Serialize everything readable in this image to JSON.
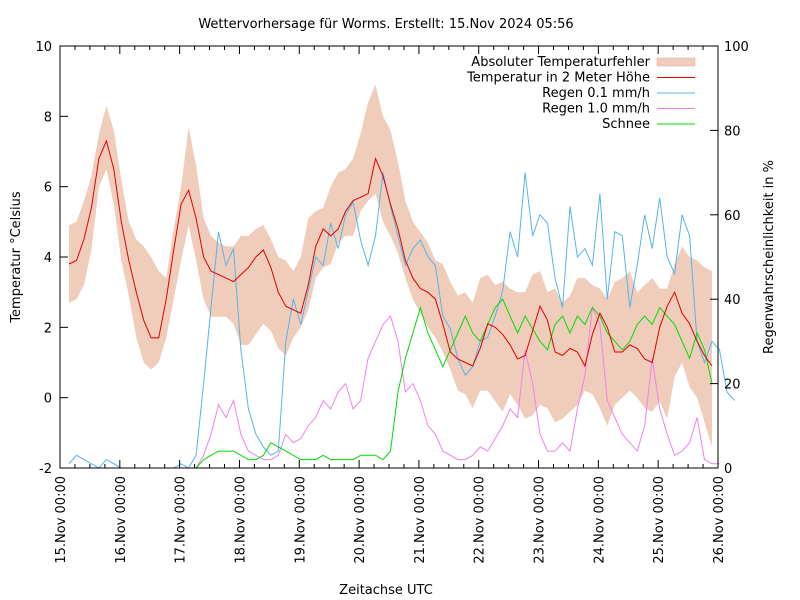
{
  "chart_data": {
    "type": "line",
    "title": "Wettervorhersage für Worms. Erstellt: 15.Nov 2024 05:56",
    "xlabel": "Zeitachse UTC",
    "ylabel": "Temperatur °Celsius",
    "y2label": "Regenwahrscheinlichkeit in %",
    "xlim_days": [
      0,
      11
    ],
    "ylim": [
      -2,
      10
    ],
    "y2lim": [
      0,
      100
    ],
    "x_ticks": [
      "15.Nov 00:00",
      "16.Nov 00:00",
      "17.Nov 00:00",
      "18.Nov 00:00",
      "19.Nov 00:00",
      "20.Nov 00:00",
      "21.Nov 00:00",
      "22.Nov 00:00",
      "23.Nov 00:00",
      "24.Nov 00:00",
      "25.Nov 00:00",
      "26.Nov 00:00"
    ],
    "y_ticks": [
      "-2",
      "0",
      "2",
      "4",
      "6",
      "8",
      "10"
    ],
    "y2_ticks": [
      "0",
      "20",
      "40",
      "60",
      "80",
      "100"
    ],
    "legend_position": "top-right",
    "x_step_hours": 3,
    "x_start_day": 0.15,
    "series": [
      {
        "name": "Absoluter Temperaturfehler",
        "kind": "band",
        "axis": "y",
        "color": "#f0ccbb",
        "upper": [
          4.9,
          5.0,
          5.6,
          6.3,
          7.5,
          8.3,
          7.6,
          6.2,
          5.0,
          4.5,
          4.3,
          4.0,
          3.6,
          3.4,
          4.8,
          6.0,
          7.7,
          6.6,
          5.1,
          4.6,
          4.4,
          4.3,
          4.3,
          4.6,
          4.6,
          4.8,
          4.9,
          4.5,
          4.0,
          3.9,
          3.6,
          4.0,
          5.1,
          5.3,
          5.4,
          6.0,
          6.4,
          6.5,
          6.8,
          7.5,
          8.4,
          8.9,
          8.0,
          7.6,
          6.7,
          5.6,
          5.0,
          4.7,
          4.4,
          3.9,
          3.8,
          3.3,
          2.9,
          3.0,
          2.7,
          3.4,
          3.5,
          3.2,
          3.3,
          3.1,
          3.0,
          3.0,
          3.5,
          3.6,
          3.0,
          3.1,
          2.7,
          2.9,
          3.4,
          3.4,
          3.2,
          3.1,
          2.8,
          3.3,
          3.4,
          3.6,
          3.0,
          3.2,
          3.4,
          3.1,
          3.1,
          3.8,
          4.3,
          4.0,
          3.9,
          3.7,
          3.6
        ],
        "lower": [
          2.7,
          2.8,
          3.2,
          4.2,
          6.0,
          6.5,
          5.5,
          3.9,
          2.9,
          1.7,
          1.0,
          0.8,
          1.0,
          1.7,
          2.8,
          3.9,
          4.9,
          3.9,
          2.8,
          2.3,
          2.3,
          2.3,
          2.1,
          1.5,
          1.5,
          1.8,
          2.1,
          1.9,
          1.4,
          1.2,
          1.7,
          2.0,
          2.5,
          3.4,
          3.7,
          3.8,
          4.4,
          4.6,
          4.6,
          5.3,
          5.6,
          5.8,
          5.0,
          4.6,
          4.1,
          3.4,
          2.8,
          2.4,
          2.0,
          1.7,
          1.3,
          0.8,
          0.2,
          0.1,
          -0.3,
          0.2,
          0.2,
          -0.1,
          -0.4,
          0.1,
          -0.2,
          -0.6,
          -0.5,
          -0.2,
          -0.3,
          -0.7,
          -0.6,
          -0.4,
          -0.2,
          0.2,
          0.1,
          -0.3,
          -0.8,
          -0.2,
          0.0,
          0.2,
          0.0,
          -0.3,
          -0.4,
          -0.1,
          -0.6,
          0.6,
          1.0,
          0.3,
          0.0,
          -0.7,
          -1.4
        ]
      },
      {
        "name": "Temperatur in 2 Meter Höhe",
        "kind": "line",
        "axis": "y",
        "color": "#e00000",
        "values": [
          3.8,
          3.9,
          4.5,
          5.4,
          6.8,
          7.3,
          6.5,
          5.0,
          3.9,
          3.0,
          2.2,
          1.7,
          1.7,
          2.8,
          4.2,
          5.5,
          5.9,
          5.1,
          4.0,
          3.6,
          3.5,
          3.4,
          3.3,
          3.5,
          3.7,
          4.0,
          4.2,
          3.7,
          3.0,
          2.6,
          2.5,
          2.4,
          3.2,
          4.3,
          4.8,
          4.6,
          4.8,
          5.3,
          5.6,
          5.7,
          5.8,
          6.8,
          6.3,
          5.5,
          4.8,
          3.9,
          3.4,
          3.1,
          3.0,
          2.8,
          2.1,
          1.3,
          1.1,
          1.0,
          0.9,
          1.4,
          2.1,
          2.0,
          1.8,
          1.5,
          1.1,
          1.2,
          1.9,
          2.6,
          2.2,
          1.3,
          1.2,
          1.4,
          1.3,
          0.9,
          1.8,
          2.4,
          2.0,
          1.3,
          1.3,
          1.5,
          1.4,
          1.1,
          1.0,
          2.0,
          2.6,
          3.0,
          2.4,
          2.1,
          1.6,
          1.2,
          0.9
        ]
      },
      {
        "name": "Regen 0.1 mm/h",
        "kind": "line",
        "axis": "y2",
        "color": "#56b4e9",
        "values": [
          1,
          3,
          2,
          1,
          0,
          2,
          1,
          0,
          0,
          0,
          0,
          0,
          0,
          0,
          0,
          1,
          0,
          3,
          20,
          38,
          56,
          48,
          52,
          28,
          14,
          8,
          5,
          3,
          4,
          30,
          40,
          34,
          42,
          50,
          48,
          58,
          52,
          60,
          63,
          54,
          48,
          55,
          70,
          62,
          55,
          48,
          52,
          54,
          50,
          48,
          36,
          33,
          26,
          22,
          24,
          30,
          31,
          36,
          42,
          56,
          50,
          70,
          55,
          60,
          58,
          45,
          38,
          62,
          50,
          52,
          48,
          65,
          40,
          56,
          55,
          38,
          48,
          60,
          52,
          64,
          50,
          46,
          60,
          55,
          30,
          25,
          30,
          28,
          18,
          16
        ]
      },
      {
        "name": "Regen 1.0 mm/h",
        "kind": "line",
        "axis": "y2",
        "color": "#ee82ee",
        "values": [
          0,
          0,
          0,
          0,
          0,
          0,
          0,
          0,
          0,
          0,
          0,
          0,
          0,
          0,
          0,
          0,
          0,
          0,
          3,
          8,
          15,
          12,
          16,
          8,
          4,
          3,
          2,
          2,
          3,
          8,
          6,
          7,
          10,
          12,
          16,
          14,
          18,
          20,
          14,
          16,
          26,
          30,
          34,
          36,
          30,
          18,
          20,
          16,
          10,
          8,
          4,
          3,
          2,
          2,
          3,
          5,
          4,
          7,
          10,
          14,
          12,
          28,
          20,
          8,
          4,
          4,
          6,
          4,
          14,
          22,
          38,
          34,
          16,
          12,
          8,
          6,
          4,
          10,
          26,
          14,
          8,
          3,
          4,
          6,
          12,
          2,
          1,
          1
        ]
      },
      {
        "name": "Schnee",
        "kind": "line",
        "axis": "y2",
        "color": "#00dd00",
        "values": [
          0,
          0,
          0,
          0,
          0,
          0,
          0,
          0,
          0,
          0,
          0,
          0,
          0,
          0,
          0,
          0,
          0,
          0,
          2,
          3,
          4,
          4,
          4,
          3,
          2,
          2,
          3,
          6,
          5,
          4,
          3,
          2,
          2,
          2,
          3,
          2,
          2,
          2,
          2,
          3,
          3,
          3,
          2,
          4,
          18,
          26,
          32,
          38,
          32,
          28,
          24,
          28,
          32,
          36,
          32,
          30,
          34,
          38,
          40,
          36,
          32,
          36,
          33,
          30,
          28,
          34,
          36,
          32,
          36,
          34,
          38,
          36,
          32,
          30,
          28,
          30,
          34,
          36,
          34,
          38,
          36,
          34,
          30,
          26,
          32,
          28,
          20
        ]
      }
    ]
  }
}
